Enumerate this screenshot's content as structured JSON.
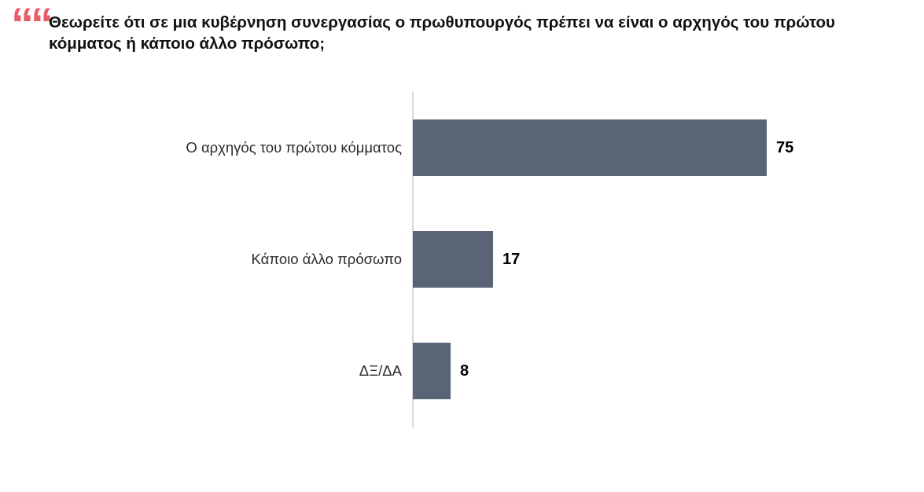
{
  "quote_mark": "““",
  "colors": {
    "bar": "#5a6477",
    "quote": "#e95d6a",
    "axis": "#d9d9d9"
  },
  "chart_data": {
    "type": "bar",
    "orientation": "horizontal",
    "title": "Θεωρείτε ότι σε μια κυβέρνηση συνεργασίας ο πρωθυπουργός πρέπει να είναι ο αρχηγός του πρώτου κόμματος ή κάποιο άλλο πρόσωπο;",
    "categories": [
      "Ο αρχηγός του πρώτου κόμματος",
      "Κάποιο άλλο πρόσωπο",
      "ΔΞ/ΔΑ"
    ],
    "values": [
      75,
      17,
      8
    ],
    "value_labels": [
      "75",
      "17",
      "8"
    ],
    "xlabel": "",
    "ylabel": "",
    "xlim": [
      0,
      100
    ],
    "grid": false,
    "legend": false,
    "bar_color": "#5a6477"
  }
}
